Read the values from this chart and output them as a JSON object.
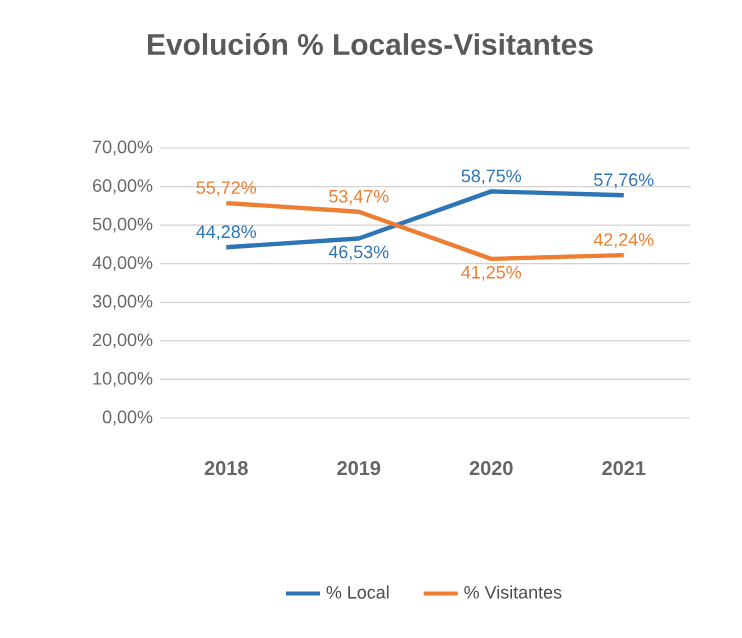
{
  "chart_data": {
    "type": "line",
    "title": "Evolución % Locales-Visitantes",
    "categories": [
      "2018",
      "2019",
      "2020",
      "2021"
    ],
    "series": [
      {
        "name": "% Local",
        "color": "#2e75b6",
        "values": [
          44.28,
          46.53,
          58.75,
          57.76
        ],
        "value_labels": [
          "44,28%",
          "46,53%",
          "58,75%",
          "57,76%"
        ]
      },
      {
        "name": "% Visitantes",
        "color": "#ed7d31",
        "values": [
          55.72,
          53.47,
          41.25,
          42.24
        ],
        "value_labels": [
          "55,72%",
          "53,47%",
          "41,25%",
          "42,24%"
        ]
      }
    ],
    "ylim": [
      0,
      70
    ],
    "yticks": [
      {
        "value": 0,
        "label": "0,00%"
      },
      {
        "value": 10,
        "label": "10,00%"
      },
      {
        "value": 20,
        "label": "20,00%"
      },
      {
        "value": 30,
        "label": "30,00%"
      },
      {
        "value": 40,
        "label": "40,00%"
      },
      {
        "value": 50,
        "label": "50,00%"
      },
      {
        "value": 60,
        "label": "60,00%"
      },
      {
        "value": 70,
        "label": "70,00%"
      }
    ],
    "grid": "y",
    "legend": "bottom",
    "marker": "none",
    "line_style": "solid"
  }
}
